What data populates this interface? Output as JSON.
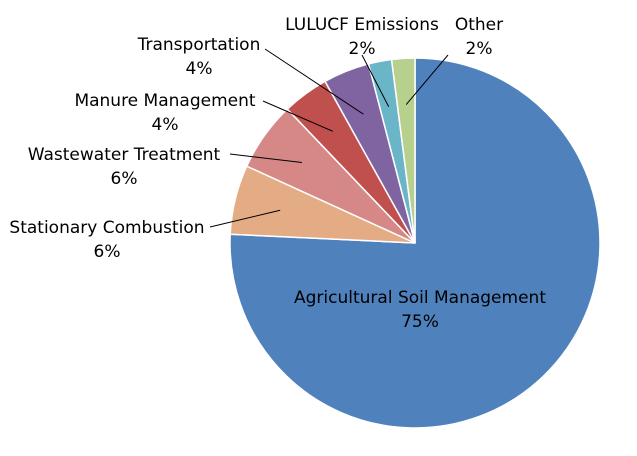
{
  "chart_data": {
    "type": "pie",
    "title": "",
    "legend": "none",
    "slices": [
      {
        "name": "Agricultural Soil Management",
        "value": 75,
        "label_pct": "75%",
        "color": "#4f81bd"
      },
      {
        "name": "Stationary Combustion",
        "value": 6,
        "label_pct": "6%",
        "color": "#e3ac84"
      },
      {
        "name": "Wastewater Treatment",
        "value": 6,
        "label_pct": "6%",
        "color": "#d58886"
      },
      {
        "name": "Manure Management",
        "value": 4,
        "label_pct": "4%",
        "color": "#c0504d"
      },
      {
        "name": "Transportation",
        "value": 4,
        "label_pct": "4%",
        "color": "#8064a2"
      },
      {
        "name": "LULUCF Emissions",
        "value": 2,
        "label_pct": "2%",
        "color": "#6ab5c7"
      },
      {
        "name": "Other",
        "value": 2,
        "label_pct": "2%",
        "color": "#b8d08e"
      }
    ]
  }
}
